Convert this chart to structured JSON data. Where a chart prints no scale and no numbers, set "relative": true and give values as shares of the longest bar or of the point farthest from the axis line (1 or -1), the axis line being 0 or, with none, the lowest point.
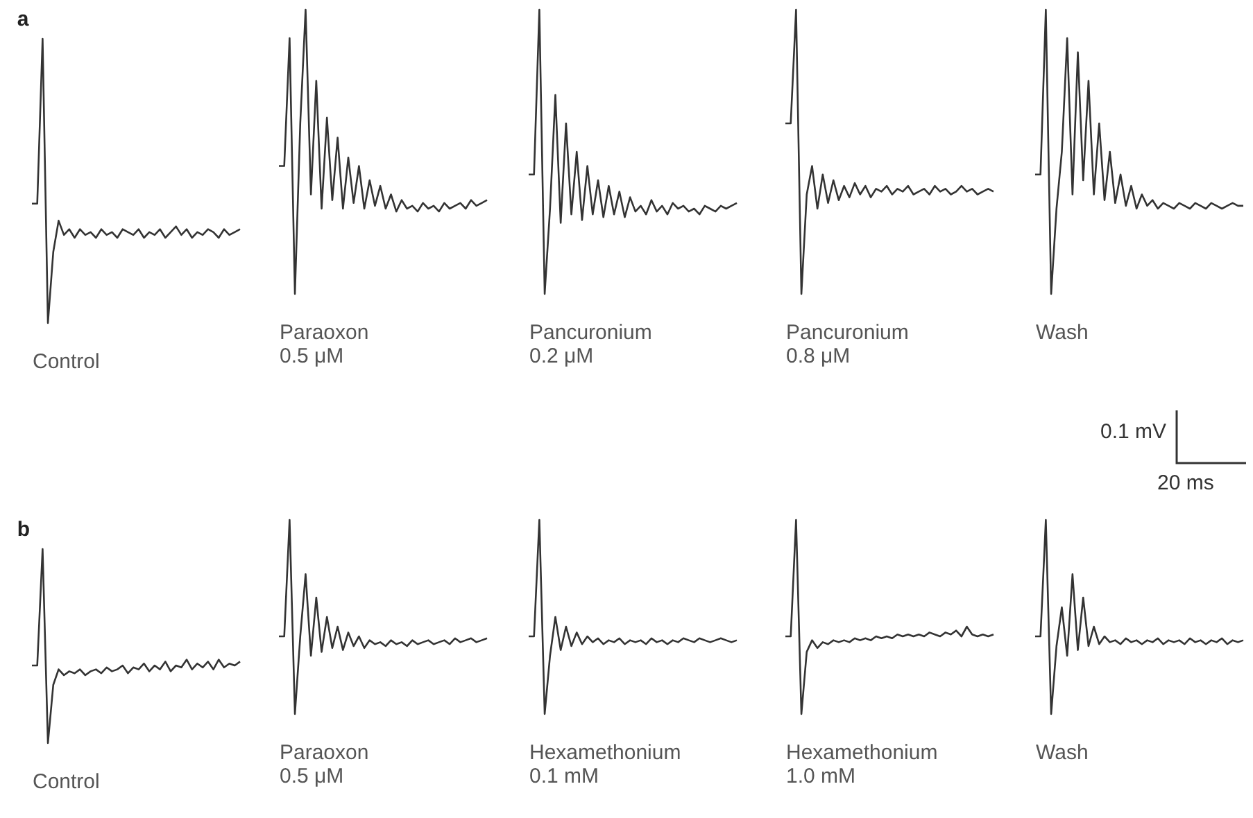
{
  "chart_data": [
    {
      "type": "line",
      "relative": true,
      "title": "a",
      "xlabel": "Control",
      "color": "#333333",
      "categories": [
        null,
        null,
        null,
        null,
        null,
        null,
        null,
        null,
        null,
        null,
        null,
        null,
        null,
        null,
        null,
        null,
        null,
        null,
        null,
        null,
        null,
        null,
        null,
        null,
        null,
        null,
        null,
        null,
        null,
        null,
        null,
        null,
        null,
        null,
        null,
        null,
        null,
        null,
        null,
        null
      ],
      "values": [
        0.42,
        0.42,
        1.0,
        0.0,
        0.25,
        0.36,
        0.31,
        0.33,
        0.3,
        0.33,
        0.31,
        0.32,
        0.3,
        0.33,
        0.31,
        0.32,
        0.3,
        0.33,
        0.32,
        0.31,
        0.33,
        0.3,
        0.32,
        0.31,
        0.33,
        0.3,
        0.32,
        0.34,
        0.31,
        0.33,
        0.3,
        0.32,
        0.31,
        0.33,
        0.32,
        0.3,
        0.33,
        0.31,
        0.32,
        0.33
      ]
    },
    {
      "type": "line",
      "relative": true,
      "xlabel": "Paraoxon\n0.5 μM",
      "color": "#333333",
      "categories": [
        null,
        null,
        null,
        null,
        null,
        null,
        null,
        null,
        null,
        null,
        null,
        null,
        null,
        null,
        null,
        null,
        null,
        null,
        null,
        null,
        null,
        null,
        null,
        null,
        null,
        null,
        null,
        null,
        null,
        null,
        null,
        null,
        null,
        null,
        null,
        null,
        null,
        null,
        null,
        null
      ],
      "values": [
        0.45,
        0.45,
        0.9,
        0.0,
        0.6,
        1.0,
        0.35,
        0.75,
        0.3,
        0.62,
        0.33,
        0.55,
        0.3,
        0.48,
        0.32,
        0.45,
        0.3,
        0.4,
        0.31,
        0.38,
        0.3,
        0.35,
        0.29,
        0.33,
        0.3,
        0.31,
        0.29,
        0.32,
        0.3,
        0.31,
        0.29,
        0.32,
        0.3,
        0.31,
        0.32,
        0.3,
        0.33,
        0.31,
        0.32,
        0.33
      ]
    },
    {
      "type": "line",
      "relative": true,
      "xlabel": "Pancuronium\n0.2 μM",
      "color": "#333333",
      "categories": [
        null,
        null,
        null,
        null,
        null,
        null,
        null,
        null,
        null,
        null,
        null,
        null,
        null,
        null,
        null,
        null,
        null,
        null,
        null,
        null,
        null,
        null,
        null,
        null,
        null,
        null,
        null,
        null,
        null,
        null,
        null,
        null,
        null,
        null,
        null,
        null,
        null,
        null,
        null,
        null
      ],
      "values": [
        0.42,
        0.42,
        1.0,
        0.0,
        0.3,
        0.7,
        0.25,
        0.6,
        0.28,
        0.5,
        0.26,
        0.45,
        0.28,
        0.4,
        0.27,
        0.38,
        0.28,
        0.36,
        0.27,
        0.34,
        0.29,
        0.31,
        0.28,
        0.33,
        0.29,
        0.31,
        0.28,
        0.32,
        0.3,
        0.31,
        0.29,
        0.3,
        0.28,
        0.31,
        0.3,
        0.29,
        0.31,
        0.3,
        0.31,
        0.32
      ]
    },
    {
      "type": "line",
      "relative": true,
      "xlabel": "Pancuronium\n0.8 μM",
      "color": "#333333",
      "categories": [
        null,
        null,
        null,
        null,
        null,
        null,
        null,
        null,
        null,
        null,
        null,
        null,
        null,
        null,
        null,
        null,
        null,
        null,
        null,
        null,
        null,
        null,
        null,
        null,
        null,
        null,
        null,
        null,
        null,
        null,
        null,
        null,
        null,
        null,
        null,
        null,
        null,
        null,
        null,
        null
      ],
      "values": [
        0.6,
        0.6,
        1.0,
        0.0,
        0.35,
        0.45,
        0.3,
        0.42,
        0.32,
        0.4,
        0.33,
        0.38,
        0.34,
        0.39,
        0.35,
        0.38,
        0.34,
        0.37,
        0.36,
        0.38,
        0.35,
        0.37,
        0.36,
        0.38,
        0.35,
        0.36,
        0.37,
        0.35,
        0.38,
        0.36,
        0.37,
        0.35,
        0.36,
        0.38,
        0.36,
        0.37,
        0.35,
        0.36,
        0.37,
        0.36
      ]
    },
    {
      "type": "line",
      "relative": true,
      "xlabel": "Wash",
      "color": "#333333",
      "annotations": [
        "0.1 mV",
        "20 ms"
      ],
      "categories": [
        null,
        null,
        null,
        null,
        null,
        null,
        null,
        null,
        null,
        null,
        null,
        null,
        null,
        null,
        null,
        null,
        null,
        null,
        null,
        null,
        null,
        null,
        null,
        null,
        null,
        null,
        null,
        null,
        null,
        null,
        null,
        null,
        null,
        null,
        null,
        null,
        null,
        null,
        null,
        null
      ],
      "values": [
        0.42,
        0.42,
        1.0,
        0.0,
        0.3,
        0.5,
        0.9,
        0.35,
        0.85,
        0.4,
        0.75,
        0.35,
        0.6,
        0.33,
        0.5,
        0.32,
        0.42,
        0.31,
        0.38,
        0.3,
        0.35,
        0.31,
        0.33,
        0.3,
        0.32,
        0.31,
        0.3,
        0.32,
        0.31,
        0.3,
        0.32,
        0.31,
        0.3,
        0.32,
        0.31,
        0.3,
        0.31,
        0.32,
        0.31,
        0.31
      ]
    },
    {
      "type": "line",
      "relative": true,
      "title": "b",
      "xlabel": "Control",
      "color": "#333333",
      "categories": [
        null,
        null,
        null,
        null,
        null,
        null,
        null,
        null,
        null,
        null,
        null,
        null,
        null,
        null,
        null,
        null,
        null,
        null,
        null,
        null,
        null,
        null,
        null,
        null,
        null,
        null,
        null,
        null,
        null,
        null,
        null,
        null,
        null,
        null,
        null,
        null,
        null,
        null,
        null,
        null
      ],
      "values": [
        0.4,
        0.4,
        1.0,
        0.0,
        0.3,
        0.38,
        0.35,
        0.37,
        0.36,
        0.38,
        0.35,
        0.37,
        0.38,
        0.36,
        0.39,
        0.37,
        0.38,
        0.4,
        0.36,
        0.39,
        0.38,
        0.41,
        0.37,
        0.4,
        0.38,
        0.42,
        0.37,
        0.4,
        0.39,
        0.43,
        0.38,
        0.41,
        0.39,
        0.42,
        0.38,
        0.43,
        0.39,
        0.41,
        0.4,
        0.42
      ]
    },
    {
      "type": "line",
      "relative": true,
      "xlabel": "Paraoxon\n0.5 μM",
      "color": "#333333",
      "categories": [
        null,
        null,
        null,
        null,
        null,
        null,
        null,
        null,
        null,
        null,
        null,
        null,
        null,
        null,
        null,
        null,
        null,
        null,
        null,
        null,
        null,
        null,
        null,
        null,
        null,
        null,
        null,
        null,
        null,
        null,
        null,
        null,
        null,
        null,
        null,
        null,
        null,
        null,
        null,
        null
      ],
      "values": [
        0.4,
        0.4,
        1.0,
        0.0,
        0.4,
        0.72,
        0.3,
        0.6,
        0.32,
        0.5,
        0.34,
        0.45,
        0.33,
        0.42,
        0.35,
        0.4,
        0.34,
        0.38,
        0.36,
        0.37,
        0.35,
        0.38,
        0.36,
        0.37,
        0.35,
        0.38,
        0.36,
        0.37,
        0.38,
        0.36,
        0.37,
        0.38,
        0.36,
        0.39,
        0.37,
        0.38,
        0.39,
        0.37,
        0.38,
        0.39
      ]
    },
    {
      "type": "line",
      "relative": true,
      "xlabel": "Hexamethonium\n0.1 mM",
      "color": "#333333",
      "categories": [
        null,
        null,
        null,
        null,
        null,
        null,
        null,
        null,
        null,
        null,
        null,
        null,
        null,
        null,
        null,
        null,
        null,
        null,
        null,
        null,
        null,
        null,
        null,
        null,
        null,
        null,
        null,
        null,
        null,
        null,
        null,
        null,
        null,
        null,
        null,
        null,
        null,
        null,
        null,
        null
      ],
      "values": [
        0.4,
        0.4,
        1.0,
        0.0,
        0.3,
        0.5,
        0.33,
        0.45,
        0.35,
        0.42,
        0.36,
        0.4,
        0.37,
        0.39,
        0.36,
        0.38,
        0.37,
        0.39,
        0.36,
        0.38,
        0.37,
        0.38,
        0.36,
        0.39,
        0.37,
        0.38,
        0.36,
        0.38,
        0.37,
        0.39,
        0.38,
        0.37,
        0.39,
        0.38,
        0.37,
        0.38,
        0.39,
        0.38,
        0.37,
        0.38
      ]
    },
    {
      "type": "line",
      "relative": true,
      "xlabel": "Hexamethonium\n1.0 mM",
      "color": "#333333",
      "categories": [
        null,
        null,
        null,
        null,
        null,
        null,
        null,
        null,
        null,
        null,
        null,
        null,
        null,
        null,
        null,
        null,
        null,
        null,
        null,
        null,
        null,
        null,
        null,
        null,
        null,
        null,
        null,
        null,
        null,
        null,
        null,
        null,
        null,
        null,
        null,
        null,
        null,
        null,
        null,
        null
      ],
      "values": [
        0.4,
        0.4,
        1.0,
        0.0,
        0.32,
        0.38,
        0.34,
        0.37,
        0.36,
        0.38,
        0.37,
        0.38,
        0.37,
        0.39,
        0.38,
        0.39,
        0.38,
        0.4,
        0.39,
        0.4,
        0.39,
        0.41,
        0.4,
        0.41,
        0.4,
        0.41,
        0.4,
        0.42,
        0.41,
        0.4,
        0.42,
        0.41,
        0.43,
        0.4,
        0.45,
        0.41,
        0.4,
        0.41,
        0.4,
        0.41
      ]
    },
    {
      "type": "line",
      "relative": true,
      "xlabel": "Wash",
      "color": "#333333",
      "categories": [
        null,
        null,
        null,
        null,
        null,
        null,
        null,
        null,
        null,
        null,
        null,
        null,
        null,
        null,
        null,
        null,
        null,
        null,
        null,
        null,
        null,
        null,
        null,
        null,
        null,
        null,
        null,
        null,
        null,
        null,
        null,
        null,
        null,
        null,
        null,
        null,
        null,
        null,
        null,
        null
      ],
      "values": [
        0.4,
        0.4,
        1.0,
        0.0,
        0.35,
        0.55,
        0.3,
        0.72,
        0.33,
        0.6,
        0.35,
        0.45,
        0.36,
        0.4,
        0.37,
        0.38,
        0.36,
        0.39,
        0.37,
        0.38,
        0.36,
        0.38,
        0.37,
        0.39,
        0.36,
        0.38,
        0.37,
        0.38,
        0.36,
        0.39,
        0.37,
        0.38,
        0.36,
        0.38,
        0.37,
        0.39,
        0.36,
        0.38,
        0.37,
        0.38
      ]
    }
  ]
}
